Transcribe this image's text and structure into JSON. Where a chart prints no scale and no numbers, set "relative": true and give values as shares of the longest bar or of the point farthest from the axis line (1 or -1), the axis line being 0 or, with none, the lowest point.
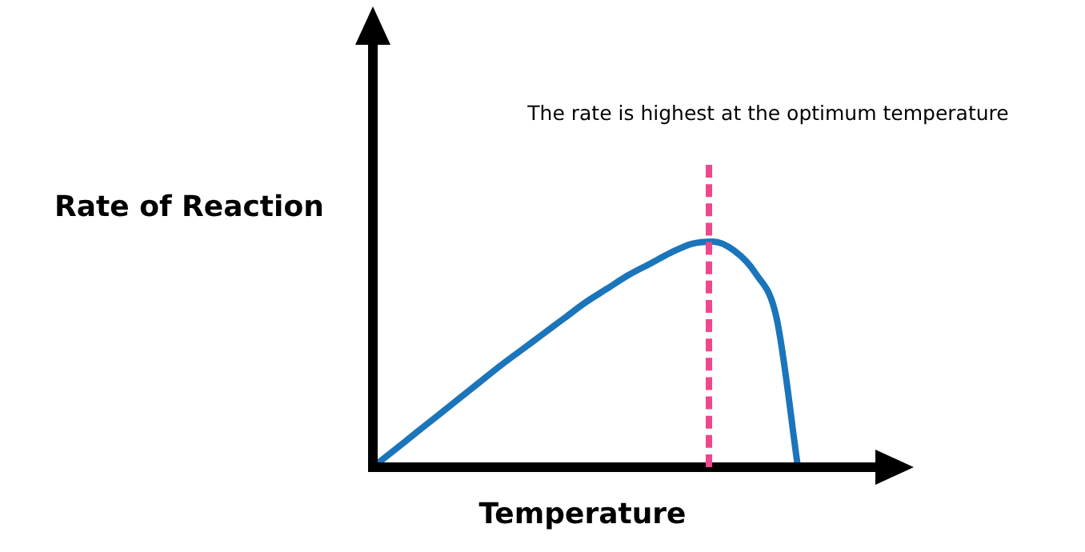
{
  "chart_data": {
    "type": "line",
    "relative": true,
    "xlabel": "Temperature",
    "ylabel": "Rate of Reaction",
    "annotations": [
      "The rate is highest at the optimum temperature"
    ],
    "categories": [
      null,
      null,
      null,
      null,
      null,
      null,
      null,
      null,
      null,
      null,
      null,
      null,
      null,
      null,
      null,
      null,
      null,
      null,
      null,
      null,
      null,
      null,
      null,
      null,
      null,
      null
    ],
    "series": [
      {
        "color": "#1a75bb",
        "values": [
          0,
          0.075,
          0.15,
          0.225,
          0.3,
          0.375,
          0.45,
          0.52,
          0.59,
          0.66,
          0.73,
          0.79,
          0.85,
          0.9,
          0.95,
          0.99,
          1,
          0.96,
          0.86,
          0.66,
          0,
          null,
          null,
          null,
          null,
          null
        ]
      }
    ],
    "grid": false,
    "legend": false,
    "marker": "none",
    "line_style": "solid"
  }
}
